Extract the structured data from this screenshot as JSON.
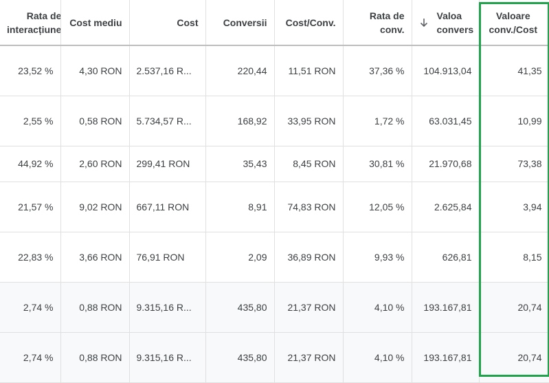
{
  "table": {
    "columns": [
      {
        "line1": "Rata de",
        "line2": "interacțiune"
      },
      {
        "line1": "Cost mediu",
        "line2": ""
      },
      {
        "line1": "Cost",
        "line2": ""
      },
      {
        "line1": "Conversii",
        "line2": ""
      },
      {
        "line1": "Cost/Conv.",
        "line2": ""
      },
      {
        "line1": "Rata de",
        "line2": "conv."
      },
      {
        "line1": "Valoa",
        "line2": "convers",
        "sort_icon": "arrow-down-icon"
      },
      {
        "line1": "Valoare",
        "line2": "conv./Cost"
      }
    ],
    "rows": [
      [
        "23,52 %",
        "4,30 RON",
        "2.537,16 R...",
        "220,44",
        "11,51 RON",
        "37,36 %",
        "104.913,04",
        "41,35"
      ],
      [
        "2,55 %",
        "0,58 RON",
        "5.734,57 R...",
        "168,92",
        "33,95 RON",
        "1,72 %",
        "63.031,45",
        "10,99"
      ],
      [
        "44,92 %",
        "2,60 RON",
        "299,41 RON",
        "35,43",
        "8,45 RON",
        "30,81 %",
        "21.970,68",
        "73,38"
      ],
      [
        "21,57 %",
        "9,02 RON",
        "667,11 RON",
        "8,91",
        "74,83 RON",
        "12,05 %",
        "2.625,84",
        "3,94"
      ],
      [
        "22,83 %",
        "3,66 RON",
        "76,91 RON",
        "2,09",
        "36,89 RON",
        "9,93 %",
        "626,81",
        "8,15"
      ],
      [
        "2,74 %",
        "0,88 RON",
        "9.315,16 R...",
        "435,80",
        "21,37 RON",
        "4,10 %",
        "193.167,81",
        "20,74"
      ],
      [
        "2,74 %",
        "0,88 RON",
        "9.315,16 R...",
        "435,80",
        "21,37 RON",
        "4,10 %",
        "193.167,81",
        "20,74"
      ]
    ]
  },
  "colors": {
    "highlight": "#1fa34a",
    "total_row_bg": "#f8f9fa",
    "grid_line": "#e0e0e0"
  }
}
